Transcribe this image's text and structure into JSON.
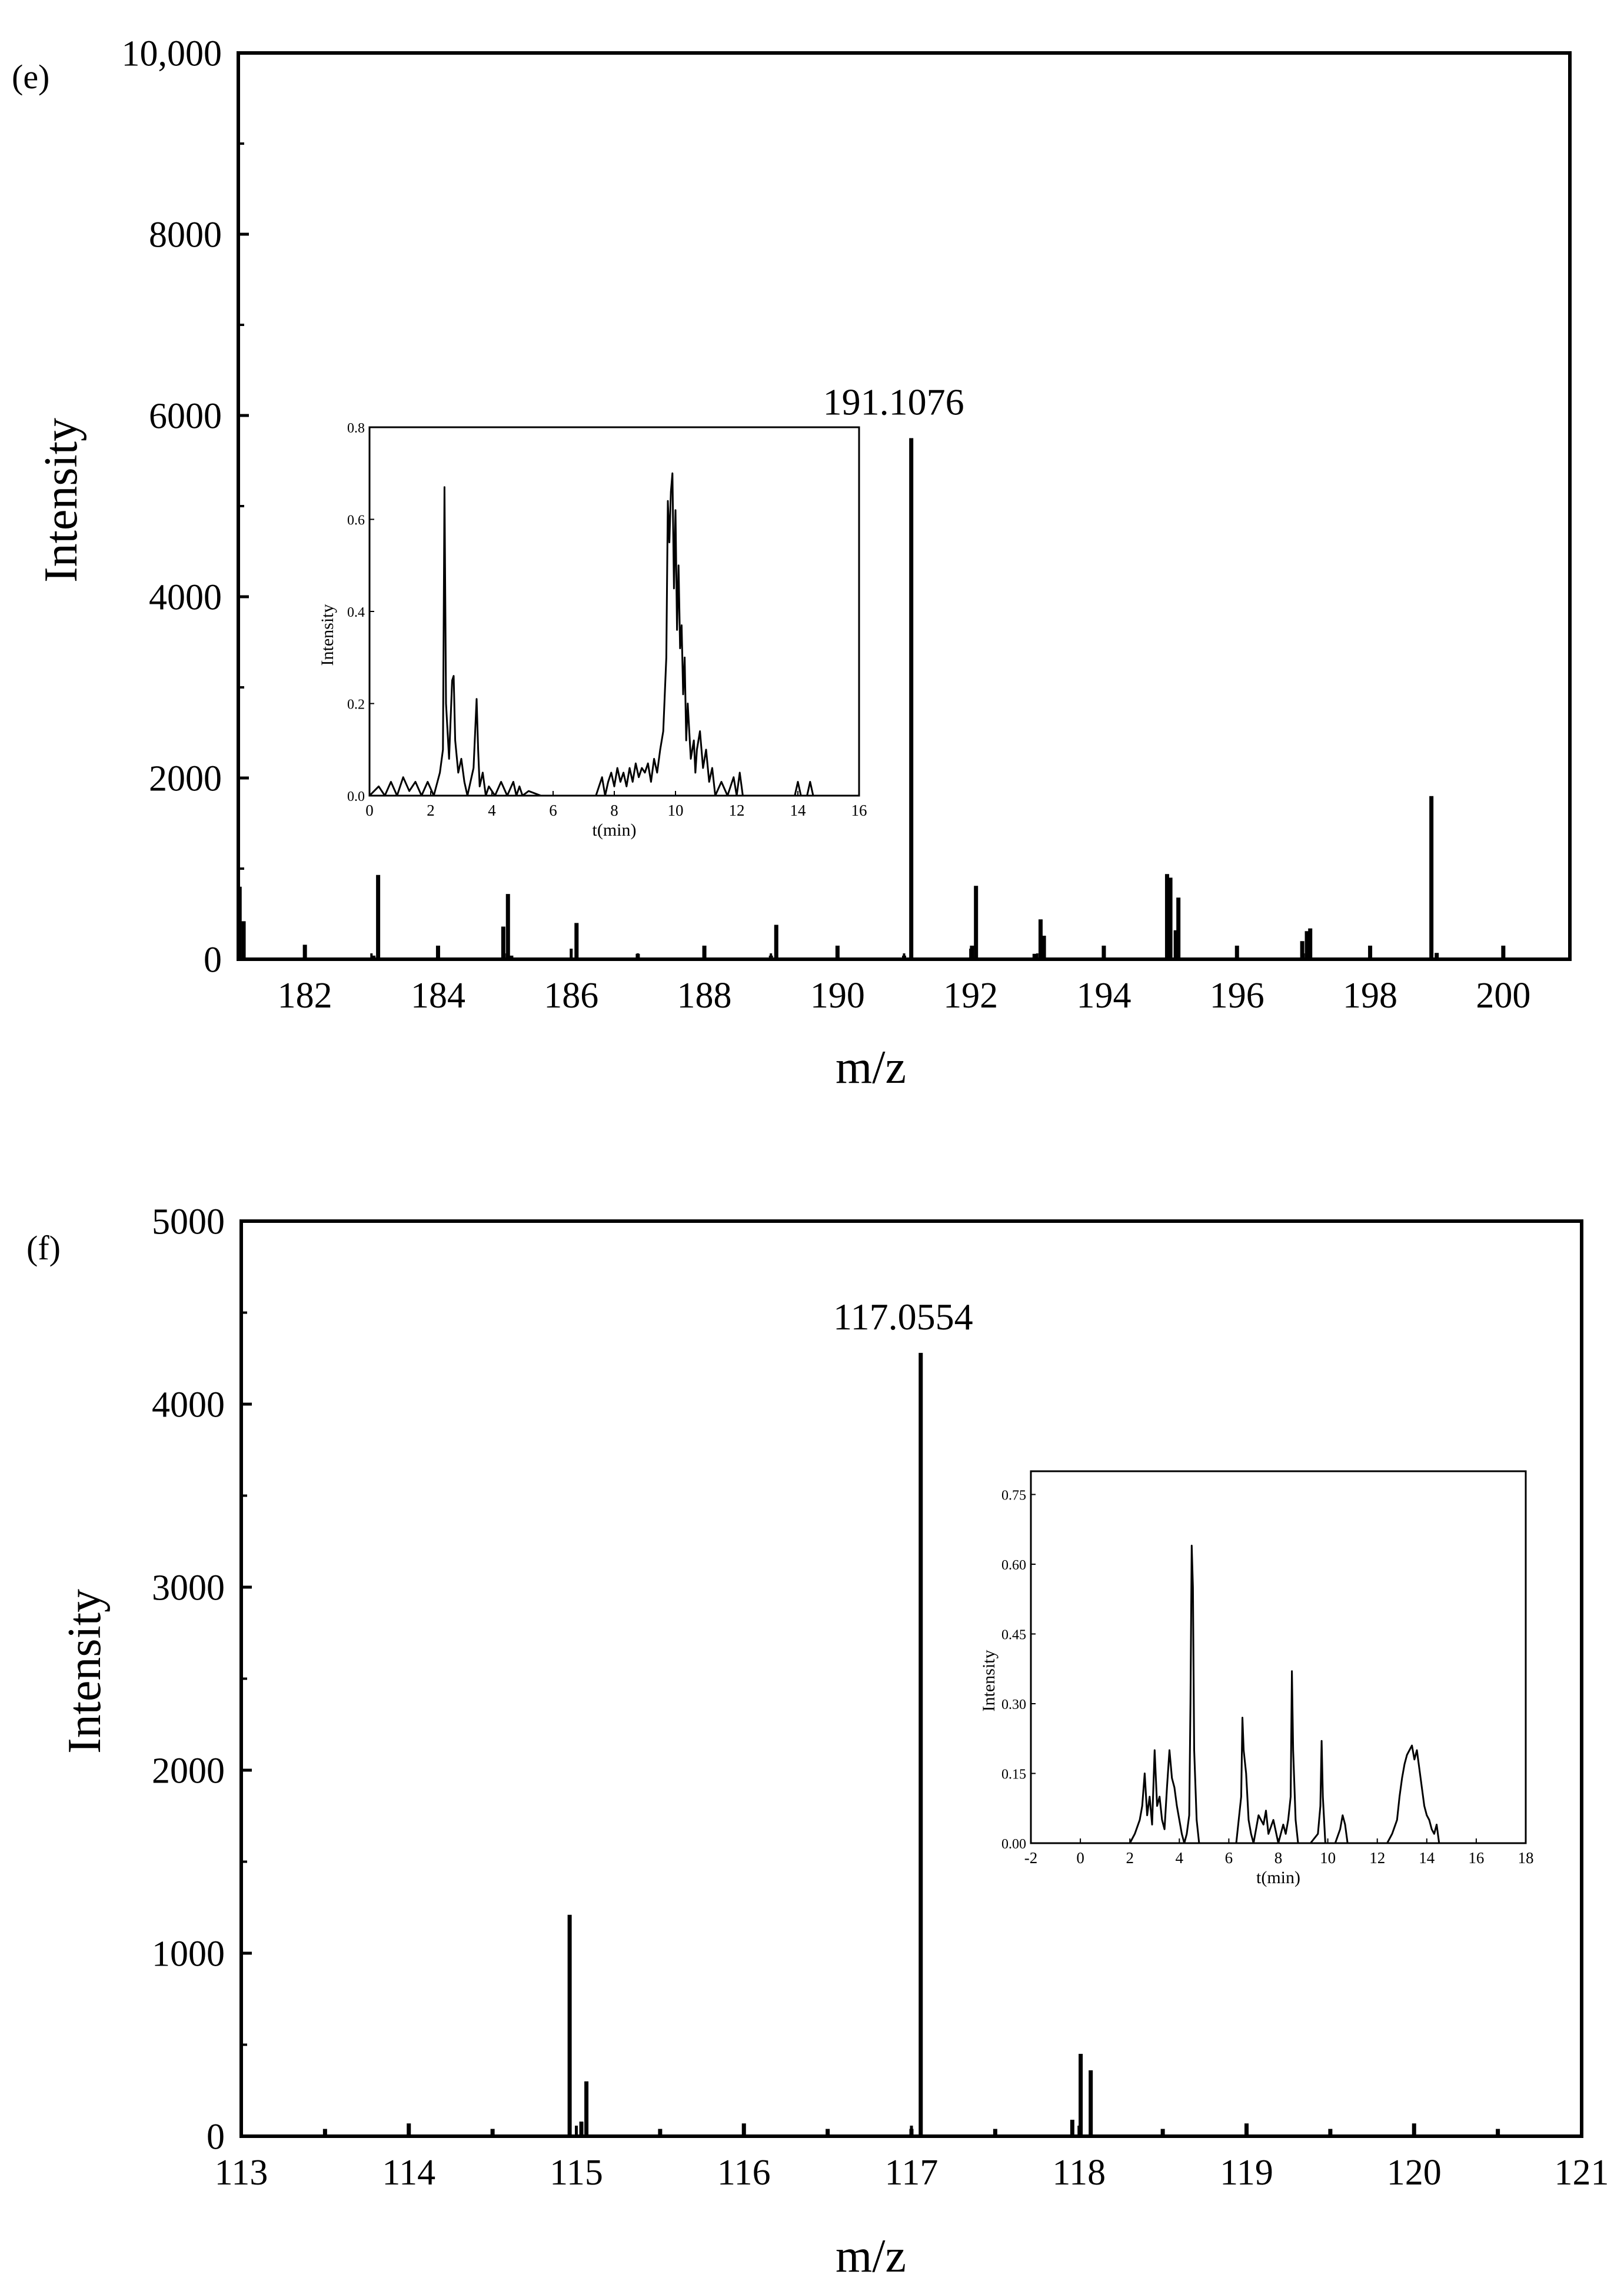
{
  "chart_data": [
    {
      "panel_label": "(e)",
      "type": "bar",
      "xlabel": "m/z",
      "ylabel": "Intensity",
      "xlim": [
        181,
        201
      ],
      "ylim": [
        0,
        10000
      ],
      "x_ticks": [
        182,
        184,
        186,
        188,
        190,
        192,
        194,
        196,
        198,
        200
      ],
      "x_tick_labels": [
        "182",
        "184",
        "186",
        "188",
        "190",
        "192",
        "194",
        "196",
        "198",
        "200"
      ],
      "y_ticks": [
        0,
        2000,
        4000,
        6000,
        8000,
        10000
      ],
      "y_tick_labels": [
        "0",
        "2000",
        "4000",
        "6000",
        "8000",
        "10,000"
      ],
      "peak_annotation": {
        "label": "191.1076",
        "x": 191.1076,
        "y": 5750
      },
      "series": [
        {
          "x": [
            181.02,
            181.08,
            182.0,
            183.03,
            183.1,
            184.0,
            184.98,
            185.05,
            185.1,
            186.08,
            187.0,
            188.0,
            189.0,
            189.08,
            190.0,
            191.0,
            191.1076,
            192.02,
            192.08,
            192.96,
            193.05,
            193.1,
            194.0,
            194.95,
            195.0,
            195.08,
            195.12,
            196.0,
            196.98,
            197.05,
            197.1,
            198.0,
            198.92,
            199.0,
            200.0
          ],
          "values": [
            800,
            420,
            160,
            40,
            930,
            150,
            360,
            720,
            40,
            400,
            60,
            150,
            40,
            380,
            150,
            40,
            5750,
            150,
            810,
            60,
            440,
            260,
            150,
            940,
            900,
            320,
            680,
            150,
            200,
            310,
            340,
            150,
            1800,
            70,
            150
          ]
        }
      ],
      "inset": {
        "type": "line",
        "xlabel": "t(min)",
        "ylabel": "Intensity",
        "xlim": [
          0,
          16
        ],
        "ylim": [
          0,
          0.8
        ],
        "x_ticks": [
          0,
          2,
          4,
          6,
          8,
          10,
          12,
          14,
          16
        ],
        "x_tick_labels": [
          "0",
          "2",
          "4",
          "6",
          "8",
          "10",
          "12",
          "14",
          "16"
        ],
        "y_ticks": [
          0,
          0.2,
          0.4,
          0.6,
          0.8
        ],
        "y_tick_labels": [
          "0.0",
          "0.2",
          "0.4",
          "0.6",
          "0.8"
        ],
        "series": [
          {
            "x": [
              0,
              0.3,
              0.5,
              0.7,
              0.9,
              1.1,
              1.3,
              1.5,
              1.7,
              1.9,
              2.1,
              2.3,
              2.4,
              2.45,
              2.5,
              2.6,
              2.7,
              2.75,
              2.8,
              2.9,
              3.0,
              3.1,
              3.2,
              3.4,
              3.5,
              3.55,
              3.6,
              3.7,
              3.8,
              3.9,
              4.1,
              4.3,
              4.5,
              4.7,
              4.8,
              4.9,
              5.0,
              5.2,
              5.6,
              6.0,
              6.5,
              7.0,
              7.4,
              7.6,
              7.7,
              7.8,
              7.9,
              8.0,
              8.1,
              8.2,
              8.3,
              8.4,
              8.5,
              8.6,
              8.7,
              8.8,
              8.9,
              9.0,
              9.1,
              9.2,
              9.3,
              9.4,
              9.5,
              9.6,
              9.7,
              9.75,
              9.8,
              9.85,
              9.9,
              9.95,
              10.0,
              10.05,
              10.1,
              10.15,
              10.2,
              10.25,
              10.3,
              10.35,
              10.4,
              10.5,
              10.6,
              10.65,
              10.7,
              10.8,
              10.9,
              11.0,
              11.1,
              11.2,
              11.3,
              11.5,
              11.7,
              11.9,
              12.0,
              12.1,
              12.2,
              12.4,
              12.8,
              13.2,
              13.6,
              13.9,
              14.0,
              14.1,
              14.3,
              14.4,
              14.5,
              14.6,
              14.8,
              15.2,
              15.6,
              16.0
            ],
            "values": [
              0.0,
              0.02,
              0.0,
              0.03,
              0.0,
              0.04,
              0.01,
              0.03,
              0.0,
              0.03,
              0.0,
              0.05,
              0.1,
              0.67,
              0.2,
              0.08,
              0.25,
              0.26,
              0.12,
              0.05,
              0.08,
              0.03,
              0.0,
              0.06,
              0.21,
              0.1,
              0.02,
              0.05,
              0.0,
              0.02,
              0.0,
              0.03,
              0.0,
              0.03,
              0.0,
              0.02,
              0.0,
              0.01,
              0.0,
              0.0,
              0.0,
              0.0,
              0.0,
              0.04,
              0.0,
              0.03,
              0.05,
              0.02,
              0.06,
              0.03,
              0.05,
              0.02,
              0.06,
              0.03,
              0.07,
              0.04,
              0.06,
              0.05,
              0.07,
              0.03,
              0.08,
              0.05,
              0.1,
              0.14,
              0.3,
              0.64,
              0.55,
              0.66,
              0.7,
              0.45,
              0.62,
              0.36,
              0.5,
              0.32,
              0.37,
              0.22,
              0.3,
              0.12,
              0.2,
              0.08,
              0.12,
              0.05,
              0.1,
              0.14,
              0.06,
              0.1,
              0.03,
              0.06,
              0.0,
              0.03,
              0.0,
              0.04,
              0.0,
              0.05,
              0.0,
              0.0,
              0.0,
              0.0,
              0.0,
              0.0,
              0.03,
              0.0,
              0.0,
              0.03,
              0.0,
              0.0,
              0.0,
              0.0,
              0.0,
              0.0
            ]
          }
        ]
      }
    },
    {
      "panel_label": "(f)",
      "type": "bar",
      "xlabel": "m/z",
      "ylabel": "Intensity",
      "xlim": [
        113,
        121
      ],
      "ylim": [
        0,
        5000
      ],
      "x_ticks": [
        113,
        114,
        115,
        116,
        117,
        118,
        119,
        120,
        121
      ],
      "x_tick_labels": [
        "113",
        "114",
        "115",
        "116",
        "117",
        "118",
        "119",
        "120",
        "121"
      ],
      "y_ticks": [
        0,
        1000,
        2000,
        3000,
        4000,
        5000
      ],
      "y_tick_labels": [
        "0",
        "1000",
        "2000",
        "3000",
        "4000",
        "5000"
      ],
      "peak_annotation": {
        "label": "117.0554",
        "x": 117.0554,
        "y": 4280
      },
      "series": [
        {
          "x": [
            113.5,
            114.0,
            114.5,
            114.96,
            115.03,
            115.06,
            115.5,
            116.0,
            116.5,
            117.0,
            117.0554,
            117.5,
            117.96,
            118.01,
            118.07,
            118.5,
            119.0,
            119.5,
            120.0,
            120.5
          ],
          "values": [
            40,
            70,
            40,
            1210,
            80,
            300,
            40,
            70,
            40,
            40,
            4280,
            40,
            90,
            450,
            360,
            40,
            70,
            40,
            70,
            40
          ]
        }
      ],
      "inset": {
        "type": "line",
        "xlabel": "t(min)",
        "ylabel": "Intensity",
        "xlim": [
          -2,
          18
        ],
        "ylim": [
          0,
          0.8
        ],
        "x_ticks": [
          -2,
          0,
          2,
          4,
          6,
          8,
          10,
          12,
          14,
          16,
          18
        ],
        "x_tick_labels": [
          "-2",
          "0",
          "2",
          "4",
          "6",
          "8",
          "10",
          "12",
          "14",
          "16",
          "18"
        ],
        "y_ticks": [
          0,
          0.15,
          0.3,
          0.45,
          0.6,
          0.75
        ],
        "y_tick_labels": [
          "0.00",
          "0.15",
          "0.30",
          "0.45",
          "0.60",
          "0.75"
        ],
        "series": [
          {
            "x": [
              2.0,
              2.2,
              2.4,
              2.5,
              2.6,
              2.7,
              2.8,
              2.9,
              3.0,
              3.1,
              3.2,
              3.3,
              3.4,
              3.5,
              3.6,
              3.7,
              3.8,
              3.9,
              4.0,
              4.1,
              4.2,
              4.3,
              4.4,
              4.45,
              4.5,
              4.55,
              4.6,
              4.7,
              4.8,
              5.0,
              5.5,
              6.0,
              6.3,
              6.5,
              6.55,
              6.6,
              6.7,
              6.8,
              6.9,
              7.0,
              7.2,
              7.4,
              7.5,
              7.6,
              7.8,
              8.0,
              8.2,
              8.3,
              8.4,
              8.5,
              8.55,
              8.6,
              8.7,
              8.8,
              9.0,
              9.3,
              9.6,
              9.7,
              9.75,
              9.8,
              9.9,
              10.1,
              10.3,
              10.5,
              10.6,
              10.7,
              10.8,
              11.0,
              11.5,
              12.0,
              12.4,
              12.6,
              12.8,
              12.9,
              13.0,
              13.1,
              13.2,
              13.3,
              13.4,
              13.5,
              13.6,
              13.7,
              13.8,
              13.9,
              14.0,
              14.1,
              14.2,
              14.3,
              14.4,
              14.5,
              15.0,
              16.0,
              17.0,
              18.0
            ],
            "values": [
              0.0,
              0.02,
              0.05,
              0.08,
              0.15,
              0.06,
              0.1,
              0.04,
              0.2,
              0.08,
              0.1,
              0.05,
              0.03,
              0.12,
              0.2,
              0.14,
              0.12,
              0.08,
              0.05,
              0.02,
              0.0,
              0.02,
              0.06,
              0.3,
              0.64,
              0.55,
              0.2,
              0.05,
              0.0,
              0.0,
              0.0,
              0.0,
              0.0,
              0.1,
              0.27,
              0.2,
              0.15,
              0.05,
              0.02,
              0.0,
              0.06,
              0.04,
              0.07,
              0.02,
              0.05,
              0.0,
              0.04,
              0.02,
              0.05,
              0.1,
              0.37,
              0.2,
              0.05,
              0.0,
              0.0,
              0.0,
              0.02,
              0.08,
              0.22,
              0.1,
              0.0,
              0.0,
              0.0,
              0.03,
              0.06,
              0.04,
              0.0,
              0.0,
              0.0,
              0.0,
              0.0,
              0.02,
              0.05,
              0.1,
              0.14,
              0.17,
              0.19,
              0.2,
              0.21,
              0.18,
              0.2,
              0.16,
              0.12,
              0.08,
              0.06,
              0.05,
              0.03,
              0.02,
              0.04,
              0.0,
              0.0,
              0.0,
              0.0,
              0.0
            ]
          }
        ]
      }
    }
  ]
}
